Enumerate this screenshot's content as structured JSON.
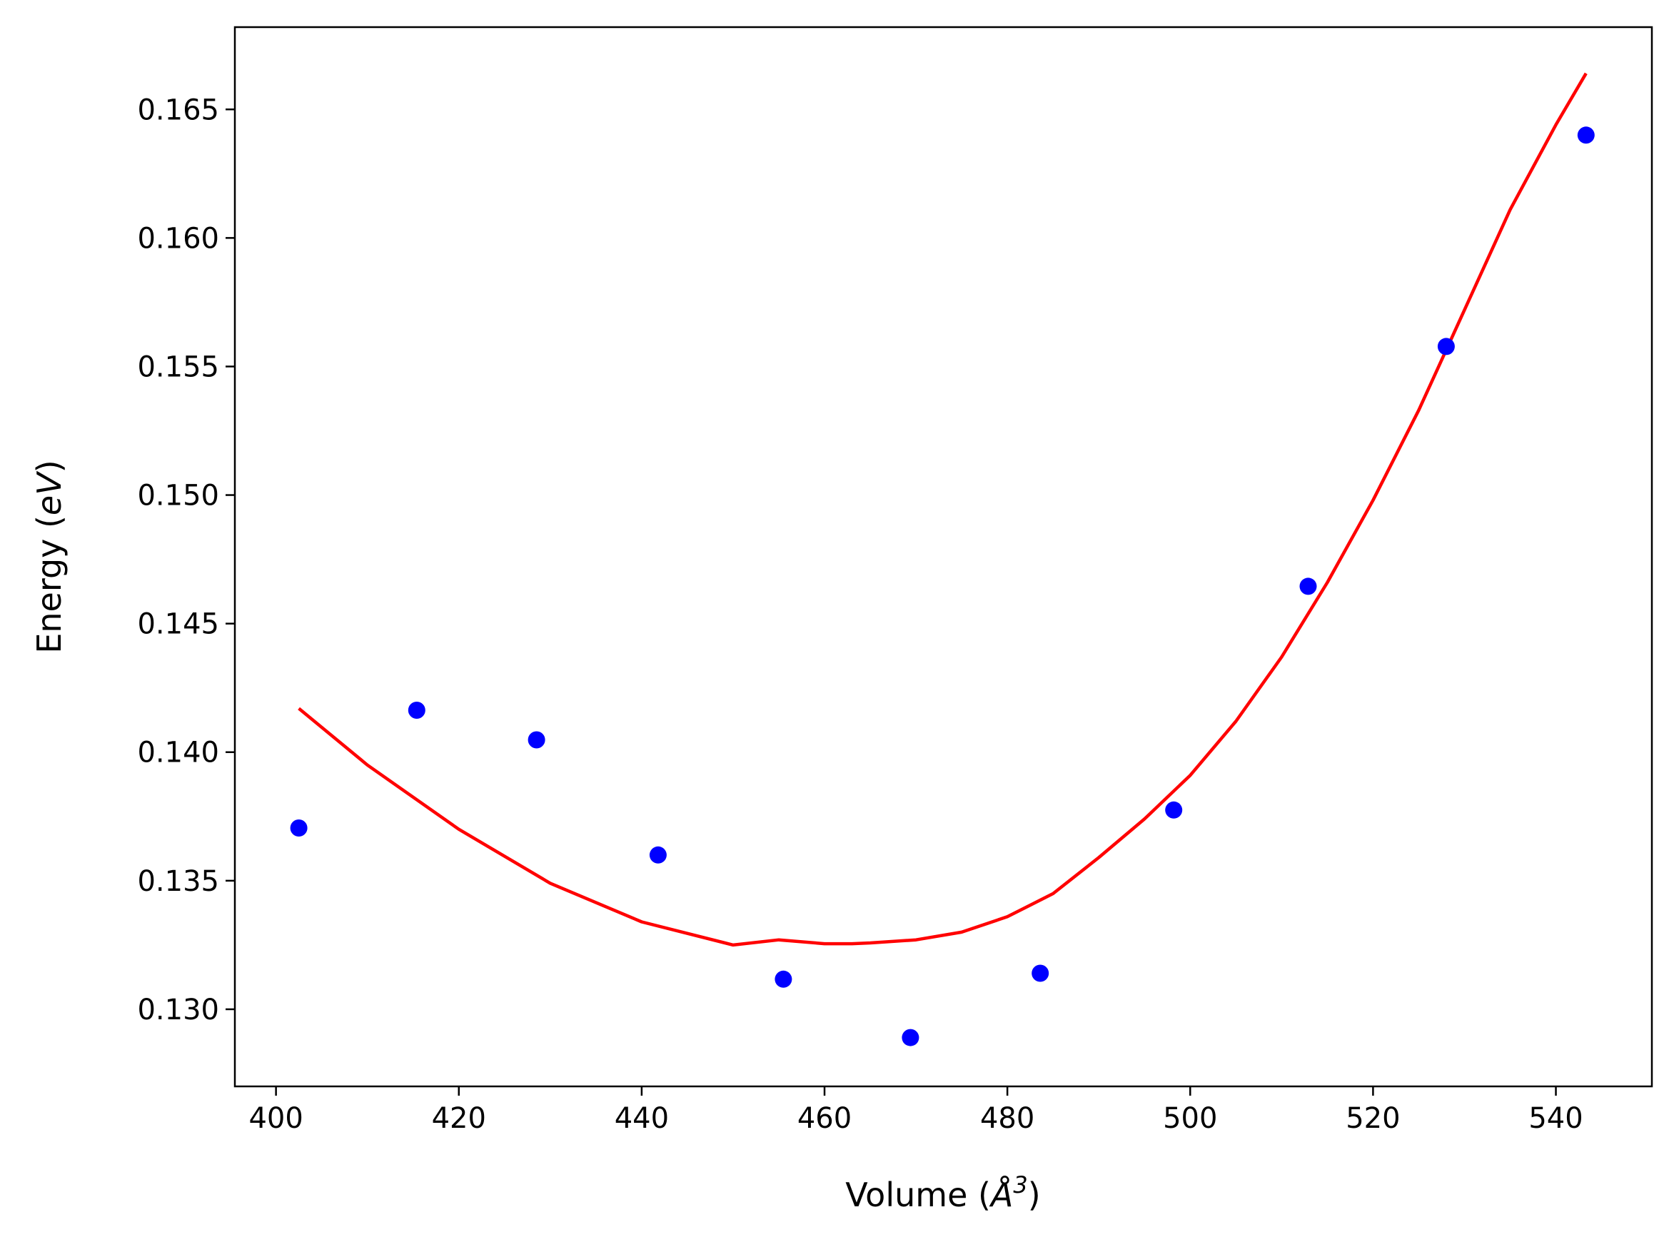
{
  "chart_data": {
    "type": "scatter",
    "title": "",
    "xlabel": {
      "prefix": "Volume (",
      "symbol": "Å",
      "superscript": "3",
      "suffix": ")"
    },
    "ylabel": {
      "prefix": "Energy (",
      "symbol": "eV",
      "suffix": ")"
    },
    "xlim": [
      395.5,
      550.5
    ],
    "ylim": [
      0.127,
      0.1682
    ],
    "xticks": [
      400,
      420,
      440,
      460,
      480,
      500,
      520,
      540
    ],
    "xtick_labels": [
      "400",
      "420",
      "440",
      "460",
      "480",
      "500",
      "520",
      "540"
    ],
    "yticks": [
      0.13,
      0.135,
      0.14,
      0.145,
      0.15,
      0.155,
      0.16,
      0.165
    ],
    "ytick_labels": [
      "0.130",
      "0.135",
      "0.140",
      "0.145",
      "0.150",
      "0.155",
      "0.160",
      "0.165"
    ],
    "grid": false,
    "series": [
      {
        "kind": "points",
        "color": "#0000ff",
        "x": [
          402.5,
          415.4,
          428.5,
          441.8,
          455.5,
          469.4,
          483.6,
          498.2,
          512.9,
          528.0,
          543.3
        ],
        "y": [
          0.13705,
          0.14163,
          0.14048,
          0.136,
          0.13117,
          0.1289,
          0.1314,
          0.13775,
          0.14645,
          0.15578,
          0.164
        ]
      },
      {
        "kind": "fit-curve",
        "color": "#ff0000",
        "x": [
          402.5,
          410,
          420,
          430,
          440,
          450,
          455,
          460,
          463,
          465,
          470,
          475,
          480,
          485,
          490,
          495,
          500,
          505,
          510,
          515,
          520,
          525,
          530,
          535,
          540,
          543.3
        ],
        "y": [
          0.1417,
          0.1395,
          0.137,
          0.1349,
          0.1334,
          0.1325,
          0.1327,
          0.13255,
          0.13255,
          0.13258,
          0.1327,
          0.133,
          0.1336,
          0.1345,
          0.1359,
          0.1374,
          0.1391,
          0.1412,
          0.1437,
          0.1466,
          0.1498,
          0.1533,
          0.1572,
          0.1611,
          0.1644,
          0.1664
        ]
      }
    ]
  }
}
